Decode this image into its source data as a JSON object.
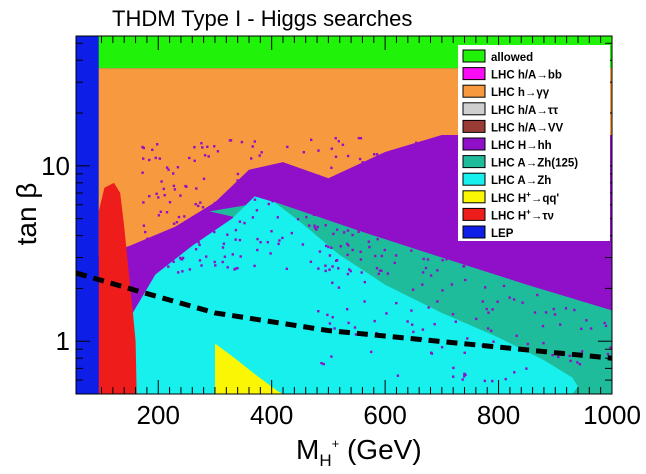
{
  "chart_data": {
    "type": "scatter",
    "title": "THDM Type  I - Higgs searches",
    "xlabel": "M",
    "xlabel_sub": "H",
    "xlabel_sup": "+",
    "xlabel_unit": " (GeV)",
    "ylabel": "tan β",
    "xlim": [
      55,
      1000
    ],
    "ylim": [
      0.5,
      55
    ],
    "yscale": "log",
    "x_ticks": [
      200,
      400,
      600,
      800,
      1000
    ],
    "x_tick_labels": [
      "200",
      "400",
      "600",
      "800",
      "1000"
    ],
    "y_ticks": [
      1,
      10
    ],
    "y_tick_labels": [
      "1",
      "10"
    ],
    "regions": [
      {
        "name": "LEP",
        "color": "#0d1fe6",
        "x": [
          55,
          95
        ]
      },
      {
        "name": "LHC H+ to tau nu",
        "color": "#ef1c1c",
        "x": [
          95,
          160
        ]
      },
      {
        "name": "LHC A to Zh",
        "color": "#18f0ee"
      },
      {
        "name": "LHC A to Zh(125)",
        "color": "#1fbc9c"
      },
      {
        "name": "LHC H to hh",
        "color": "#8f10c8"
      },
      {
        "name": "LHC h to gamma gamma",
        "color": "#f7993f",
        "tanb": [
          15,
          36
        ]
      },
      {
        "name": "LHC H+ to qq'",
        "color": "#fbf704"
      },
      {
        "name": "allowed",
        "color": "#20f20a",
        "tanb": [
          36,
          55
        ]
      }
    ],
    "dashed_line": {
      "x": [
        55,
        160,
        300,
        500,
        750,
        900,
        1000
      ],
      "y": [
        2.45,
        1.95,
        1.45,
        1.15,
        0.96,
        0.86,
        0.8
      ]
    },
    "legend": {
      "position": "top-right",
      "entries": [
        {
          "color": "#20f20a",
          "html": "allowed"
        },
        {
          "color": "#fb0bf5",
          "html": "LHC h/A→bb"
        },
        {
          "color": "#f7993f",
          "html": "LHC h→γγ"
        },
        {
          "color": "#cfcfcf",
          "html": "LHC h/A→ττ"
        },
        {
          "color": "#9a3c36",
          "html": "LHC h/A→VV"
        },
        {
          "color": "#8f10c8",
          "html": "LHC H→hh"
        },
        {
          "color": "#1fbc9c",
          "html": "LHC A→Zh(125)"
        },
        {
          "color": "#18f0ee",
          "html": "LHC A→Zh"
        },
        {
          "color": "#fbf704",
          "html": "LHC H+→qq'"
        },
        {
          "color": "#ef1c1c",
          "html": "LHC H+→τν"
        },
        {
          "color": "#0d1fe6",
          "html": "LEP"
        }
      ]
    }
  }
}
